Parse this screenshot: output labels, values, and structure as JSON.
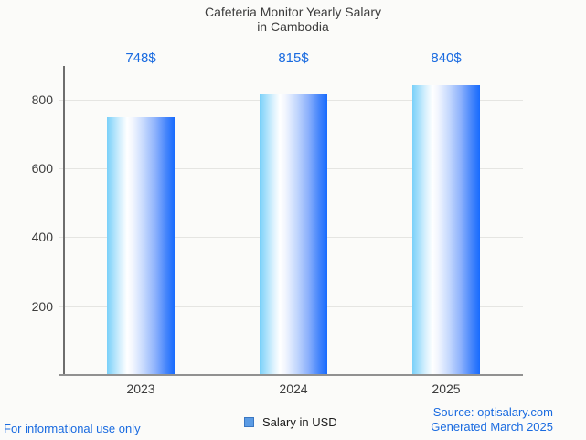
{
  "header": {
    "title": "Cafeteria Monitor Yearly Salary",
    "subtitle": "in Cambodia"
  },
  "legend": {
    "label": "Salary in USD",
    "marker_fill": "#5b9be4",
    "marker_border": "#3a77c2"
  },
  "footer": {
    "disclaimer": "For informational use only",
    "source": "Source: optisalary.com",
    "generated": "Generated March 2025"
  },
  "colors": {
    "background": "#fbfbf9",
    "accent_text_blue": "#1a6be0",
    "title_text": "#3d3d3d",
    "axis_text": "#3d3d3d",
    "gridline": "#e5e5e2",
    "y_axis_line": "#6e6e6e",
    "x_axis_line": "#919191",
    "bar_gradient_left": "#79d0f9",
    "bar_gradient_mid": "#ffffff",
    "bar_gradient_right": "#176bfe"
  },
  "chart_data": {
    "type": "bar",
    "title": "Cafeteria Monitor Yearly Salary in Cambodia",
    "categories": [
      "2023",
      "2024",
      "2025"
    ],
    "series": [
      {
        "name": "Salary in USD",
        "values": [
          748,
          815,
          840
        ]
      }
    ],
    "bar_labels": [
      "748$",
      "815$",
      "840$"
    ],
    "xlabel": "",
    "ylabel": "",
    "yticks": [
      200,
      400,
      600,
      800
    ],
    "ylim": [
      0,
      897
    ],
    "grid": "horizontal",
    "legend_position": "bottom"
  }
}
